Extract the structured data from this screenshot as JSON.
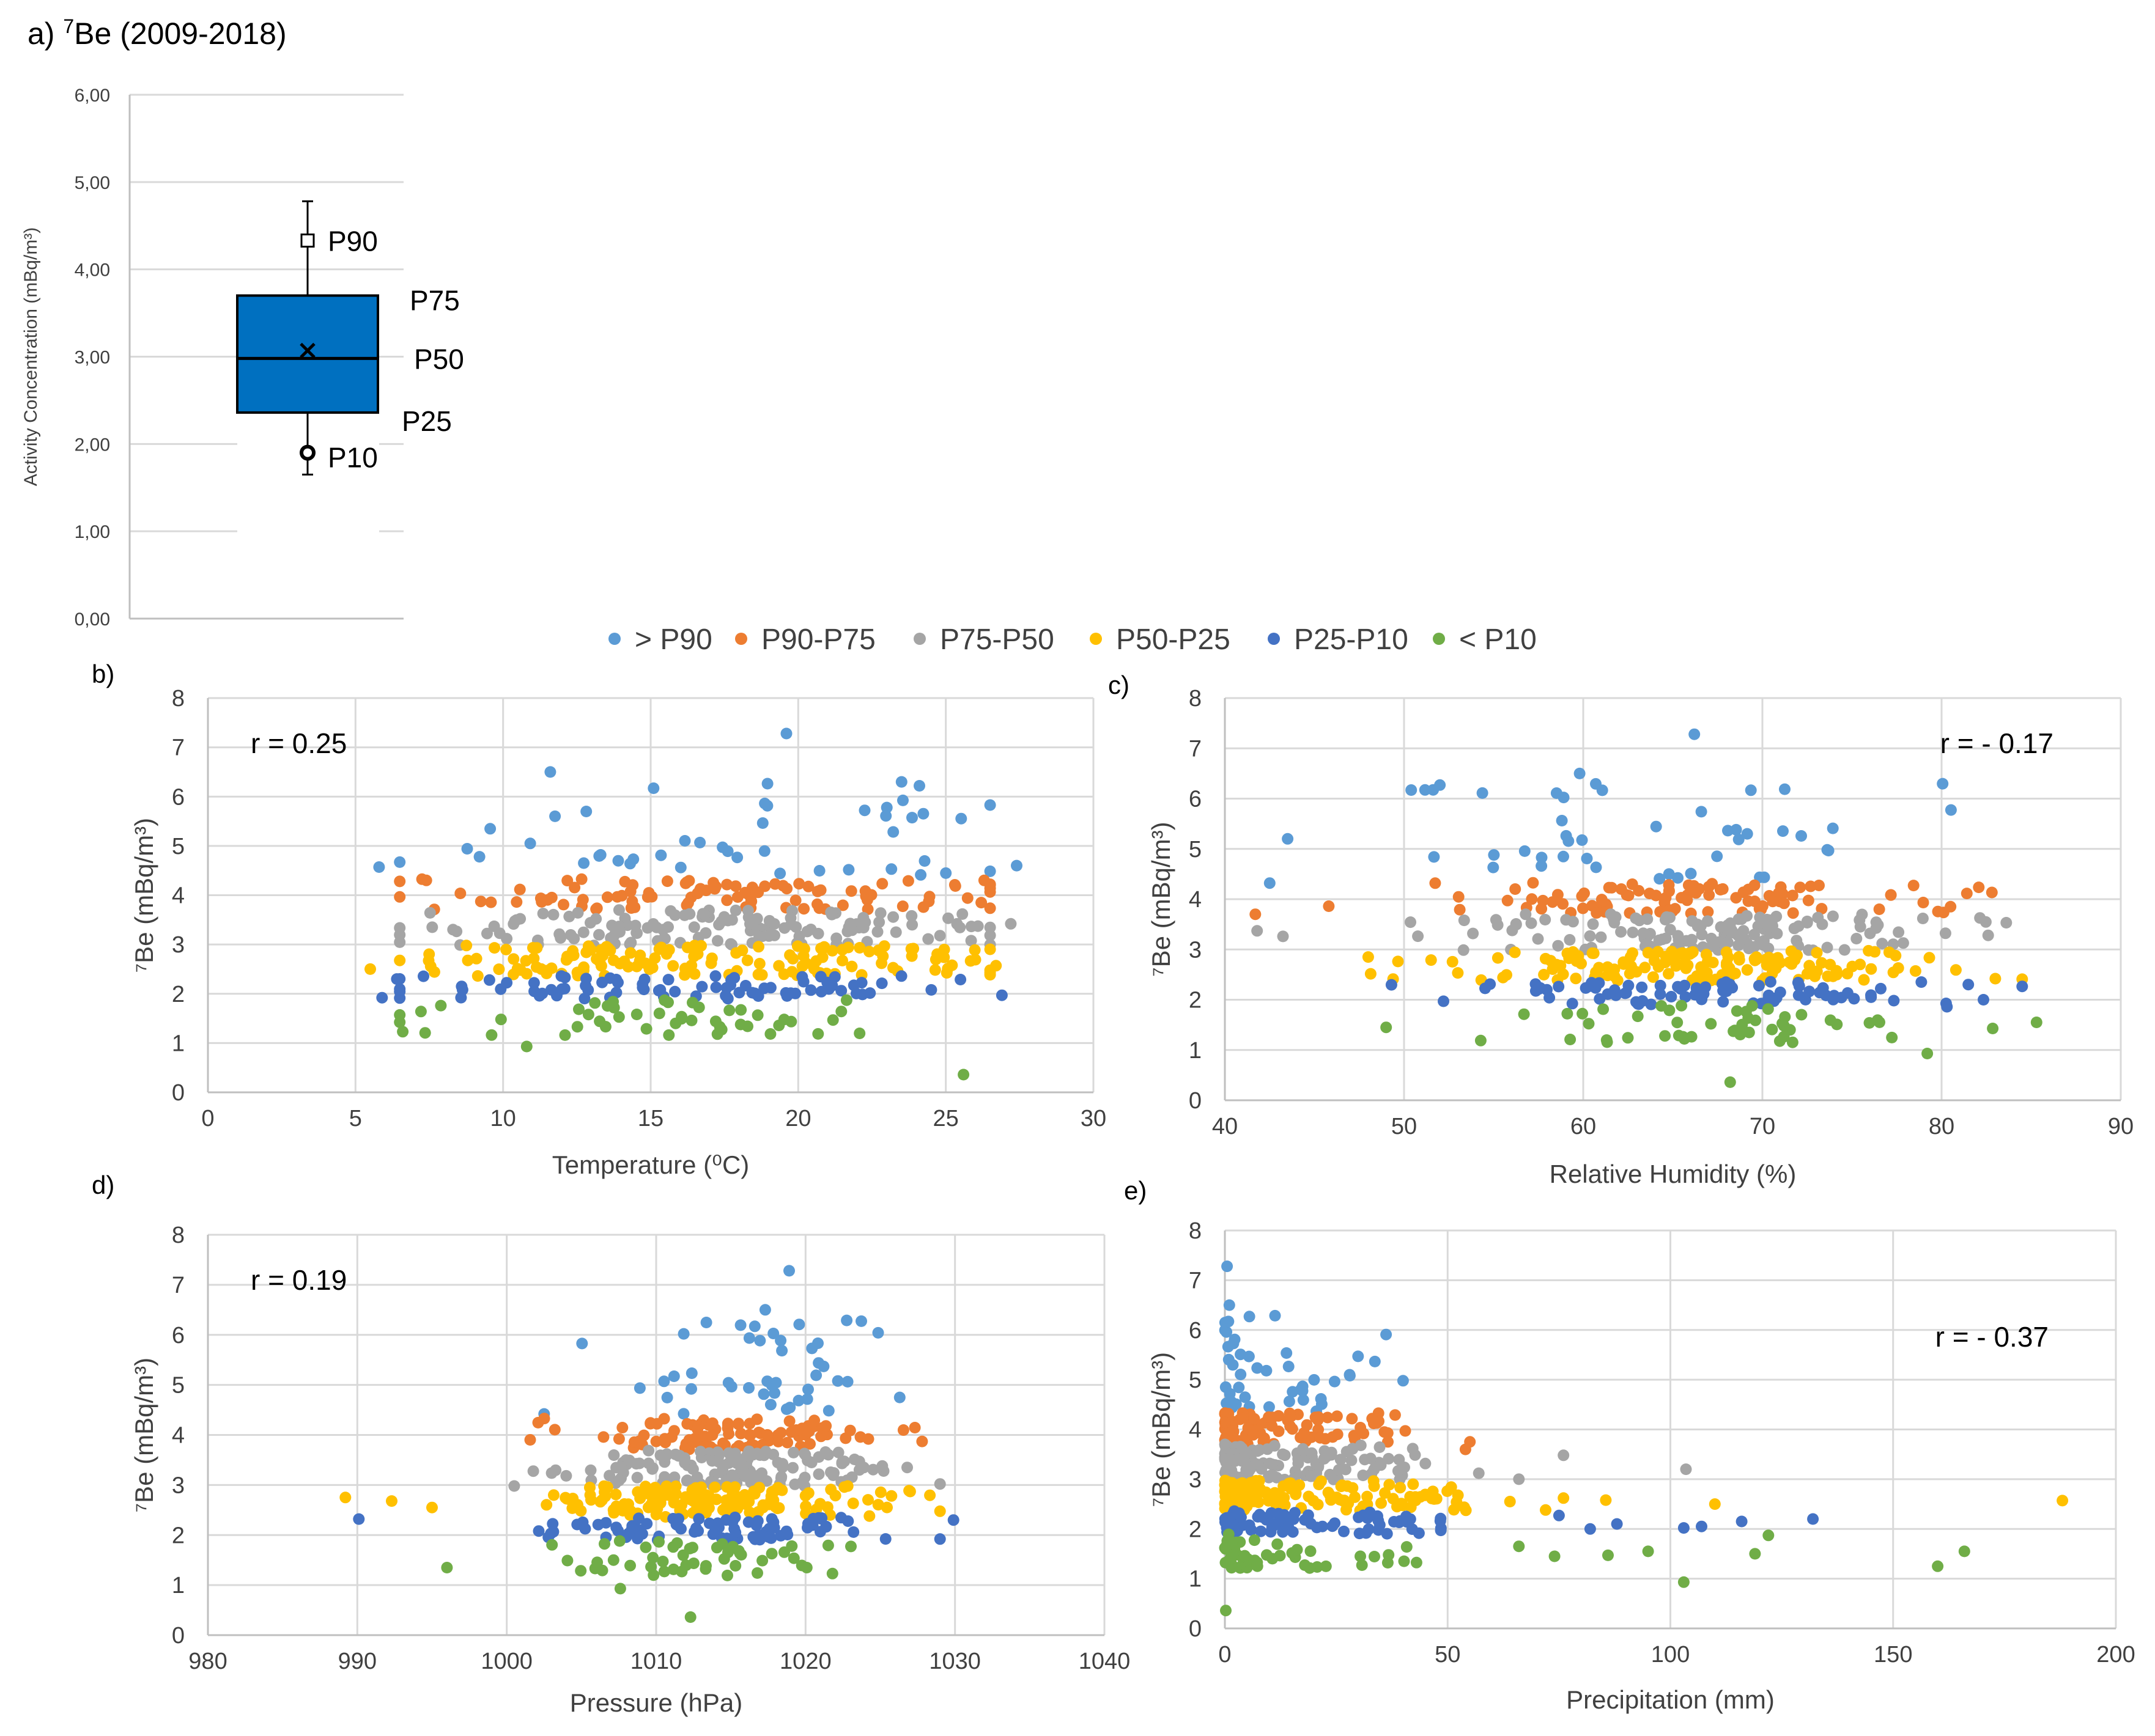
{
  "colors": {
    "gt_p90": "#5B9BD5",
    "p90_p75": "#ED7D31",
    "p75_p50": "#A5A5A5",
    "p50_p25": "#FFC000",
    "p25_p10": "#4472C4",
    "lt_p10": "#70AD47",
    "box_fill": "#0070C0",
    "grid": "#d9d9d9",
    "axis": "#bfbfbf"
  },
  "legend": [
    {
      "key": "gt_p90",
      "label": "> P90"
    },
    {
      "key": "p90_p75",
      "label": "P90-P75"
    },
    {
      "key": "p75_p50",
      "label": "P75-P50"
    },
    {
      "key": "p50_p25",
      "label": "P50-P25"
    },
    {
      "key": "p25_p10",
      "label": "P25-P10"
    },
    {
      "key": "lt_p10",
      "label": "< P10"
    }
  ],
  "chart_data": [
    {
      "panel": "a)",
      "type": "box",
      "title": "7Be (2009-2018)",
      "title_prefix": "a) ",
      "title_sup": "7",
      "title_rest": "Be (2009-2018)",
      "ylabel": "Activity Concentration (mBq/m³)",
      "ylim": [
        0,
        6
      ],
      "yticks": [
        "0,00",
        "1,00",
        "2,00",
        "3,00",
        "4,00",
        "5,00",
        "6,00"
      ],
      "whisker_min": 1.65,
      "p10": 1.9,
      "p25": 2.36,
      "p50": 2.98,
      "mean": 3.07,
      "p75": 3.7,
      "p90": 4.33,
      "whisker_max": 4.78,
      "labels": {
        "p90": "P90",
        "p75": "P75",
        "p50": "P50",
        "p25": "P25",
        "p10": "P10"
      }
    },
    {
      "panel": "b)",
      "type": "scatter",
      "xlabel": "Temperature (⁰C)",
      "ylabel": "⁷Be (mBq/m³)",
      "xlim": [
        0,
        30
      ],
      "ylim": [
        0,
        8
      ],
      "xticks": [
        0,
        5,
        10,
        15,
        20,
        25,
        30
      ],
      "yticks": [
        0,
        1,
        2,
        3,
        4,
        5,
        6,
        7,
        8
      ],
      "r": "r = 0.25",
      "r_pos": "top-left",
      "xcenter": 17,
      "xspread": 5.4,
      "xmin": 5.5,
      "xmax": 27.5,
      "ycorr": 0.08,
      "seed": 11,
      "series": {
        "gt_p90": {
          "n": 42,
          "ymin": 4.35,
          "ymax": 6.3,
          "extra": [
            [
              19.6,
              7.28
            ],
            [
              11.6,
              6.5
            ],
            [
              15.1,
              6.17
            ],
            [
              23.5,
              6.3
            ],
            [
              5.8,
              4.57
            ],
            [
              27.4,
              4.6
            ],
            [
              9.2,
              4.78
            ]
          ]
        },
        "p90_p75": {
          "n": 95,
          "ymin": 3.7,
          "ymax": 4.33,
          "extra": [
            [
              6.5,
              4.28
            ],
            [
              7.4,
              4.3
            ],
            [
              26.2,
              3.85
            ]
          ]
        },
        "p75_p50": {
          "n": 140,
          "ymin": 2.98,
          "ymax": 3.7,
          "extra": [
            [
              7.6,
              3.35
            ],
            [
              27.2,
              3.42
            ]
          ]
        },
        "p50_p25": {
          "n": 140,
          "ymin": 2.36,
          "ymax": 2.98,
          "extra": [
            [
              5.5,
              2.5
            ],
            [
              26.7,
              2.57
            ]
          ]
        },
        "p25_p10": {
          "n": 80,
          "ymin": 1.9,
          "ymax": 2.36,
          "extra": [
            [
              5.9,
              1.92
            ],
            [
              6.4,
              2.3
            ],
            [
              26.9,
              1.97
            ]
          ]
        },
        "lt_p10": {
          "n": 48,
          "ymin": 1.15,
          "ymax": 1.9,
          "extra": [
            [
              10.8,
              0.93
            ],
            [
              25.6,
              0.36
            ],
            [
              6.6,
              1.23
            ]
          ]
        }
      }
    },
    {
      "panel": "c)",
      "type": "scatter",
      "xlabel": "Relative Humidity (%)",
      "ylabel": "⁷Be (mBq/m³)",
      "xlim": [
        40,
        90
      ],
      "ylim": [
        0,
        8
      ],
      "xticks": [
        40,
        50,
        60,
        70,
        80,
        90
      ],
      "yticks": [
        0,
        1,
        2,
        3,
        4,
        5,
        6,
        7,
        8
      ],
      "r": "r = - 0.17",
      "r_pos": "top-right",
      "xcenter": 67,
      "xspread": 6.5,
      "xmin": 41.5,
      "xmax": 85.5,
      "ycorr": -0.05,
      "seed": 23,
      "series": {
        "gt_p90": {
          "n": 42,
          "ymin": 4.35,
          "ymax": 6.3,
          "extra": [
            [
              66.2,
              7.28
            ],
            [
              59.8,
              6.5
            ],
            [
              50.4,
              6.17
            ],
            [
              52,
              6.27
            ],
            [
              43.5,
              5.2
            ],
            [
              42.5,
              4.32
            ]
          ]
        },
        "p90_p75": {
          "n": 95,
          "ymin": 3.7,
          "ymax": 4.33,
          "extra": [
            [
              41.7,
              3.7
            ],
            [
              45.8,
              3.86
            ],
            [
              80.5,
              3.85
            ]
          ]
        },
        "p75_p50": {
          "n": 140,
          "ymin": 2.98,
          "ymax": 3.7,
          "extra": [
            [
              41.8,
              3.37
            ],
            [
              82.6,
              3.28
            ]
          ]
        },
        "p50_p25": {
          "n": 140,
          "ymin": 2.36,
          "ymax": 2.98,
          "extra": [
            [
              48,
              2.85
            ],
            [
              83,
              2.42
            ]
          ]
        },
        "p25_p10": {
          "n": 80,
          "ymin": 1.9,
          "ymax": 2.36,
          "extra": [
            [
              52.2,
              1.97
            ],
            [
              80.3,
              1.86
            ]
          ]
        },
        "lt_p10": {
          "n": 48,
          "ymin": 1.15,
          "ymax": 1.9,
          "extra": [
            [
              68.2,
              0.36
            ],
            [
              79.2,
              0.93
            ],
            [
              49,
              1.45
            ],
            [
              85.3,
              1.55
            ]
          ]
        }
      }
    },
    {
      "panel": "d)",
      "type": "scatter",
      "xlabel": "Pressure (hPa)",
      "ylabel": "⁷Be (mBq/m³)",
      "xlim": [
        980,
        1040
      ],
      "ylim": [
        0,
        8
      ],
      "xticks": [
        980,
        990,
        1000,
        1010,
        1020,
        1030,
        1040
      ],
      "yticks": [
        0,
        1,
        2,
        3,
        4,
        5,
        6,
        7,
        8
      ],
      "r": "r = 0.19",
      "r_pos": "top-left",
      "xcenter": 1014,
      "xspread": 5.2,
      "xmin": 989,
      "xmax": 1030,
      "ycorr": 0.06,
      "seed": 37,
      "series": {
        "gt_p90": {
          "n": 42,
          "ymin": 4.35,
          "ymax": 6.3,
          "extra": [
            [
              1018.9,
              7.28
            ],
            [
              1017.3,
              6.5
            ],
            [
              1016.6,
              6.17
            ],
            [
              1026.3,
              4.75
            ],
            [
              1002.5,
              4.42
            ]
          ]
        },
        "p90_p75": {
          "n": 95,
          "ymin": 3.7,
          "ymax": 4.33,
          "extra": [
            [
              1027.8,
              3.87
            ],
            [
              1024.2,
              3.92
            ]
          ]
        },
        "p75_p50": {
          "n": 140,
          "ymin": 2.98,
          "ymax": 3.7,
          "extra": [
            [
              1000.5,
              2.98
            ],
            [
              1026.8,
              3.35
            ]
          ]
        },
        "p50_p25": {
          "n": 140,
          "ymin": 2.36,
          "ymax": 2.98,
          "extra": [
            [
              989.2,
              2.75
            ],
            [
              992.3,
              2.68
            ],
            [
              995,
              2.55
            ],
            [
              1027,
              2.87
            ]
          ]
        },
        "p25_p10": {
          "n": 80,
          "ymin": 1.9,
          "ymax": 2.36,
          "extra": [
            [
              990.1,
              2.32
            ],
            [
              1029.9,
              2.3
            ],
            [
              1029,
              1.92
            ]
          ]
        },
        "lt_p10": {
          "n": 48,
          "ymin": 1.15,
          "ymax": 1.9,
          "extra": [
            [
              1007.6,
              0.93
            ],
            [
              1012.3,
              0.36
            ],
            [
              996,
              1.35
            ],
            [
              1021.8,
              1.23
            ]
          ]
        }
      }
    },
    {
      "panel": "e)",
      "type": "scatter",
      "xlabel": "Precipitation (mm)",
      "ylabel": "⁷Be (mBq/m³)",
      "xlim": [
        0,
        200
      ],
      "ylim": [
        0,
        8
      ],
      "xticks": [
        0,
        50,
        100,
        150,
        200
      ],
      "yticks": [
        0,
        1,
        2,
        3,
        4,
        5,
        6,
        7,
        8
      ],
      "r": "r = - 0.37",
      "r_pos": "top-right",
      "precip": true,
      "seed": 53,
      "series": {
        "gt_p90": {
          "n": 42,
          "ymin": 4.35,
          "ymax": 6.3,
          "xmax": 40,
          "extra": [
            [
              0.5,
              7.28
            ],
            [
              1,
              6.5
            ],
            [
              0.8,
              6.17
            ],
            [
              5.5,
              6.27
            ],
            [
              40,
              4.98
            ],
            [
              28,
              5.1
            ]
          ]
        },
        "p90_p75": {
          "n": 95,
          "ymin": 3.7,
          "ymax": 4.33,
          "xmax": 40,
          "extra": [
            [
              40.5,
              3.97
            ],
            [
              55,
              3.75
            ],
            [
              54,
              3.6
            ]
          ]
        },
        "p75_p50": {
          "n": 140,
          "ymin": 2.98,
          "ymax": 3.7,
          "xmax": 45,
          "extra": [
            [
              76,
              3.48
            ],
            [
              103.5,
              3.2
            ],
            [
              66,
              3.0
            ],
            [
              57,
              3.12
            ]
          ]
        },
        "p50_p25": {
          "n": 140,
          "ymin": 2.36,
          "ymax": 2.98,
          "xmax": 55,
          "extra": [
            [
              188,
              2.57
            ],
            [
              110,
              2.5
            ],
            [
              85.5,
              2.58
            ],
            [
              76,
              2.62
            ],
            [
              64,
              2.55
            ],
            [
              72,
              2.38
            ]
          ]
        },
        "p25_p10": {
          "n": 80,
          "ymin": 1.9,
          "ymax": 2.36,
          "xmax": 50,
          "extra": [
            [
              132,
              2.2
            ],
            [
              116,
              2.15
            ],
            [
              103,
              2.02
            ],
            [
              107,
              2.05
            ],
            [
              88,
              2.1
            ],
            [
              82,
              2.0
            ],
            [
              75,
              2.27
            ]
          ]
        },
        "lt_p10": {
          "n": 48,
          "ymin": 1.15,
          "ymax": 1.9,
          "xmax": 45,
          "extra": [
            [
              0.2,
              0.36
            ],
            [
              103,
              0.93
            ],
            [
              160,
              1.25
            ],
            [
              166,
              1.55
            ],
            [
              119,
              1.5
            ],
            [
              122,
              1.87
            ],
            [
              95,
              1.55
            ],
            [
              86,
              1.47
            ],
            [
              66,
              1.65
            ],
            [
              74,
              1.45
            ]
          ]
        }
      }
    }
  ]
}
